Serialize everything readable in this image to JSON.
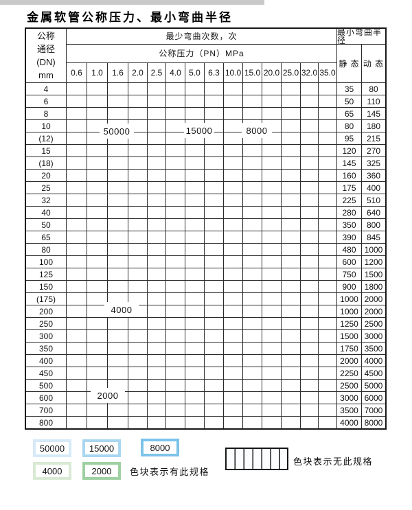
{
  "title": "金属软管公称压力、最小弯曲半径",
  "colors": {
    "blue_50000": "#d6eaf8",
    "blue_15000": "#a9d6f0",
    "blue_8000": "#7cc3ea",
    "green_4000": "#d9e9d4",
    "green_2000": "#9ed0a1",
    "header_bg": "#e8eff8",
    "label_col_bg": "#edf3fa",
    "stripe_bg": "#f5f9fd",
    "grid_line": "#2b2b2b"
  },
  "table": {
    "corner_lines": [
      "公称",
      "通径",
      "(DN)",
      "mm"
    ],
    "bend_cycles_label": "最少弯曲次数，次",
    "pressure_label": "公称压力（PN）MPa",
    "radius_label": "最小弯曲半径",
    "static_label": "静 态",
    "dynamic_label": "动 态",
    "pressures": [
      "0.6",
      "1.0",
      "1.6",
      "2.0",
      "2.5",
      "4.0",
      "5.0",
      "6.3",
      "10.0",
      "15.0",
      "20.0",
      "25.0",
      "32.0",
      "35.0"
    ],
    "cell_code_meanings": {
      "L": "50000",
      "M": "15000",
      "D": "8000",
      "G": "4000",
      "H": "2000",
      "S": "无此规格"
    },
    "rows": [
      {
        "dn": "4",
        "cells": "LLLLLMMMDDDDDD",
        "static": "35",
        "dynamic": "80"
      },
      {
        "dn": "6",
        "cells": "LLLLLMMMDDDDSS",
        "static": "50",
        "dynamic": "110"
      },
      {
        "dn": "8",
        "cells": "LLLLLMMMDDDDSS",
        "static": "65",
        "dynamic": "145"
      },
      {
        "dn": "10",
        "cells": "LLLLLMMMDDDDSS",
        "static": "80",
        "dynamic": "180"
      },
      {
        "dn": "(12)",
        "cells": "LLLLLMMMDDDDSS",
        "static": "95",
        "dynamic": "215"
      },
      {
        "dn": "15",
        "cells": "LLLLLMMMDDDDSS",
        "static": "120",
        "dynamic": "270"
      },
      {
        "dn": "(18)",
        "cells": "LLLLLMMMDDDSSS",
        "static": "145",
        "dynamic": "325"
      },
      {
        "dn": "20",
        "cells": "LLLLLMMMDDDSSS",
        "static": "160",
        "dynamic": "360"
      },
      {
        "dn": "25",
        "cells": "LLLLLMMMDDSSSS",
        "static": "175",
        "dynamic": "400"
      },
      {
        "dn": "32",
        "cells": "LLLLLMDDDSSSSS",
        "static": "225",
        "dynamic": "510"
      },
      {
        "dn": "40",
        "cells": "LLLLMMDDDSSSSS",
        "static": "280",
        "dynamic": "640"
      },
      {
        "dn": "50",
        "cells": "LLLMMMDDSSSSSS",
        "static": "350",
        "dynamic": "800"
      },
      {
        "dn": "65",
        "cells": "LLMMMDDDSSSSSS",
        "static": "390",
        "dynamic": "845"
      },
      {
        "dn": "80",
        "cells": "LLMMMDDSSSSSSS",
        "static": "480",
        "dynamic": "1000"
      },
      {
        "dn": "100",
        "cells": "GGGGGGSSSSSSSS",
        "static": "600",
        "dynamic": "1200"
      },
      {
        "dn": "125",
        "cells": "GGGGGGSSSSSSSS",
        "static": "750",
        "dynamic": "1500"
      },
      {
        "dn": "150",
        "cells": "GGGGGGSSSSSSSS",
        "static": "900",
        "dynamic": "1800"
      },
      {
        "dn": "(175)",
        "cells": "GGGGGGSSSSSSSS",
        "static": "1000",
        "dynamic": "2000"
      },
      {
        "dn": "200",
        "cells": "GGGGGGSSSSSSSS",
        "static": "1000",
        "dynamic": "2000"
      },
      {
        "dn": "250",
        "cells": "GGGGGGSSSSSSSS",
        "static": "1250",
        "dynamic": "2500"
      },
      {
        "dn": "300",
        "cells": "GGGGGGSSSSSSSS",
        "static": "1500",
        "dynamic": "3000"
      },
      {
        "dn": "350",
        "cells": "HHHHHSSSSSSSSS",
        "static": "1750",
        "dynamic": "3500"
      },
      {
        "dn": "400",
        "cells": "HHHHHSSSSSSSSS",
        "static": "2000",
        "dynamic": "4000"
      },
      {
        "dn": "450",
        "cells": "HHHHHSSSSSSSSS",
        "static": "2250",
        "dynamic": "4500"
      },
      {
        "dn": "500",
        "cells": "HHHHHSSSSSSSSS",
        "static": "2500",
        "dynamic": "5000"
      },
      {
        "dn": "600",
        "cells": "HHHHSSSSSSSSSS",
        "static": "3000",
        "dynamic": "6000"
      },
      {
        "dn": "700",
        "cells": "HHHSSSSSSSSSSS",
        "static": "3500",
        "dynamic": "7000"
      },
      {
        "dn": "800",
        "cells": "HHHSSSSSSSSSSS",
        "static": "4000",
        "dynamic": "8000"
      }
    ]
  },
  "region_labels": {
    "r50000": "50000",
    "r15000": "15000",
    "r8000": "8000",
    "r4000": "4000",
    "r2000": "2000"
  },
  "legend": {
    "swatches": [
      {
        "label": "50000",
        "code": "L"
      },
      {
        "label": "15000",
        "code": "M"
      },
      {
        "label": "8000",
        "code": "D"
      },
      {
        "label": "4000",
        "code": "G"
      },
      {
        "label": "2000",
        "code": "H"
      }
    ],
    "has_spec_note": "色块表示有此规格",
    "no_spec_note": "色块表示无此规格"
  }
}
